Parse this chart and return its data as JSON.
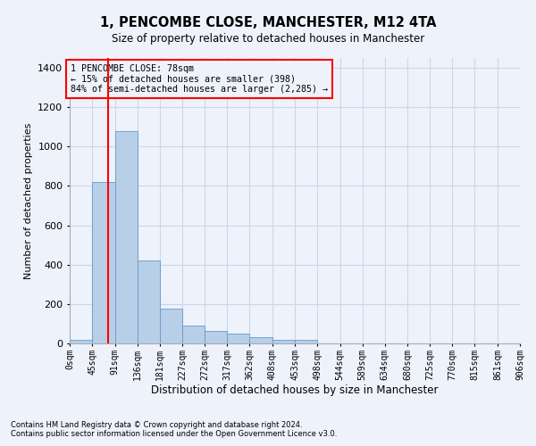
{
  "title": "1, PENCOMBE CLOSE, MANCHESTER, M12 4TA",
  "subtitle": "Size of property relative to detached houses in Manchester",
  "xlabel": "Distribution of detached houses by size in Manchester",
  "ylabel": "Number of detached properties",
  "footnote1": "Contains HM Land Registry data © Crown copyright and database right 2024.",
  "footnote2": "Contains public sector information licensed under the Open Government Licence v3.0.",
  "annotation_line1": "1 PENCOMBE CLOSE: 78sqm",
  "annotation_line2": "← 15% of detached houses are smaller (398)",
  "annotation_line3": "84% of semi-detached houses are larger (2,285) →",
  "property_size": 78,
  "bin_edges": [
    0,
    45,
    91,
    136,
    181,
    227,
    272,
    317,
    362,
    408,
    453,
    498,
    544,
    589,
    634,
    680,
    725,
    770,
    815,
    861,
    906
  ],
  "bin_labels": [
    "0sqm",
    "45sqm",
    "91sqm",
    "136sqm",
    "181sqm",
    "227sqm",
    "272sqm",
    "317sqm",
    "362sqm",
    "408sqm",
    "453sqm",
    "498sqm",
    "544sqm",
    "589sqm",
    "634sqm",
    "680sqm",
    "725sqm",
    "770sqm",
    "815sqm",
    "861sqm",
    "906sqm"
  ],
  "bar_heights": [
    20,
    820,
    1080,
    420,
    175,
    90,
    65,
    50,
    30,
    20,
    20,
    0,
    0,
    0,
    0,
    0,
    0,
    0,
    0,
    0
  ],
  "bar_color": "#b8cfe8",
  "bar_edgecolor": "#6699cc",
  "vline_color": "red",
  "vline_x": 78,
  "ylim": [
    0,
    1450
  ],
  "yticks": [
    0,
    200,
    400,
    600,
    800,
    1000,
    1200,
    1400
  ],
  "grid_color": "#c8d8ec",
  "background_color": "#eef2fb"
}
